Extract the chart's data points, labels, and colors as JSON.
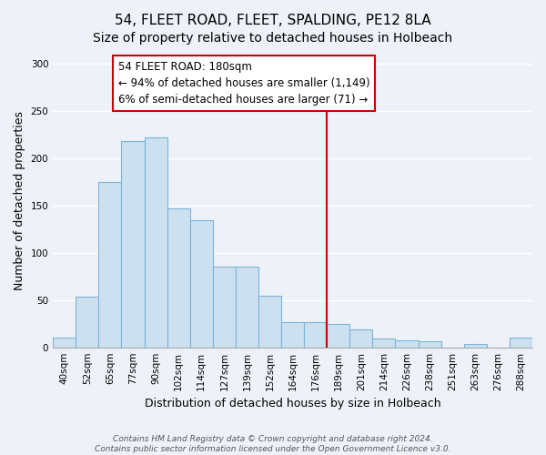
{
  "title": "54, FLEET ROAD, FLEET, SPALDING, PE12 8LA",
  "subtitle": "Size of property relative to detached houses in Holbeach",
  "xlabel": "Distribution of detached houses by size in Holbeach",
  "ylabel": "Number of detached properties",
  "categories": [
    "40sqm",
    "52sqm",
    "65sqm",
    "77sqm",
    "90sqm",
    "102sqm",
    "114sqm",
    "127sqm",
    "139sqm",
    "152sqm",
    "164sqm",
    "176sqm",
    "189sqm",
    "201sqm",
    "214sqm",
    "226sqm",
    "238sqm",
    "251sqm",
    "263sqm",
    "276sqm",
    "288sqm"
  ],
  "values": [
    10,
    54,
    175,
    218,
    222,
    147,
    135,
    85,
    85,
    55,
    27,
    27,
    25,
    19,
    9,
    7,
    6,
    0,
    4,
    0,
    10
  ],
  "bar_color": "#cde0f0",
  "bar_edge_color": "#7ab4d8",
  "marker_line_color": "#cc0000",
  "annotation_line1": "54 FLEET ROAD: 180sqm",
  "annotation_line2": "← 94% of detached houses are smaller (1,149)",
  "annotation_line3": "6% of semi-detached houses are larger (71) →",
  "annotation_box_color": "#ffffff",
  "annotation_box_edge_color": "#cc0000",
  "ylim": [
    0,
    310
  ],
  "yticks": [
    0,
    50,
    100,
    150,
    200,
    250,
    300
  ],
  "footer_text": "Contains HM Land Registry data © Crown copyright and database right 2024.\nContains public sector information licensed under the Open Government Licence v3.0.",
  "background_color": "#eef2f8",
  "grid_color": "#ffffff",
  "title_fontsize": 11,
  "subtitle_fontsize": 10,
  "axis_label_fontsize": 9,
  "tick_fontsize": 7.5,
  "annotation_fontsize": 8.5,
  "footer_fontsize": 6.5
}
